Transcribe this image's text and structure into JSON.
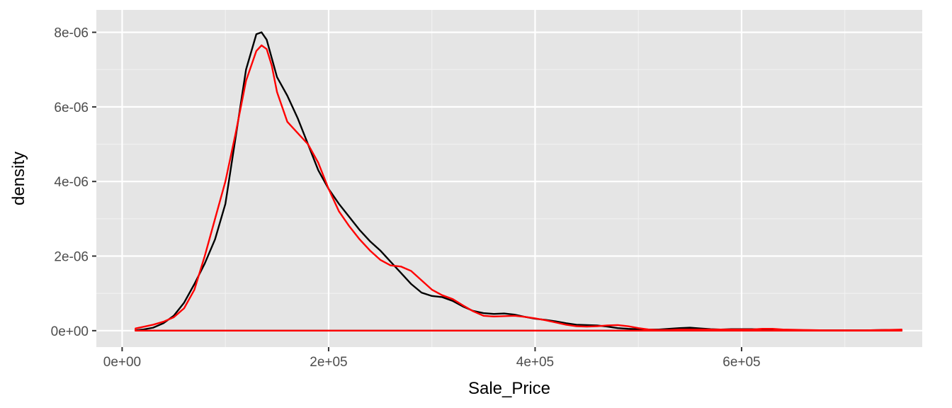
{
  "chart_data": {
    "type": "line",
    "xlabel": "Sale_Price",
    "ylabel": "density",
    "xlim": [
      -25000,
      775000
    ],
    "ylim": [
      -4.4e-07,
      8.6e-06
    ],
    "x_ticks": [
      {
        "value": 0,
        "label": "0e+00"
      },
      {
        "value": 200000,
        "label": "2e+05"
      },
      {
        "value": 400000,
        "label": "4e+05"
      },
      {
        "value": 600000,
        "label": "6e+05"
      }
    ],
    "x_minor": [
      100000,
      300000,
      500000,
      700000
    ],
    "y_ticks": [
      {
        "value": 0,
        "label": "0e+00"
      },
      {
        "value": 2e-06,
        "label": "2e-06"
      },
      {
        "value": 4e-06,
        "label": "4e-06"
      },
      {
        "value": 6e-06,
        "label": "6e-06"
      },
      {
        "value": 8e-06,
        "label": "8e-06"
      }
    ],
    "y_minor": [
      1e-06,
      3e-06,
      5e-06,
      7e-06
    ],
    "grid": true,
    "legend": "none",
    "series": [
      {
        "color": "#000000",
        "x": [
          13000,
          20000,
          30000,
          40000,
          50000,
          60000,
          70000,
          80000,
          90000,
          100000,
          110000,
          120000,
          130000,
          135000,
          140000,
          145000,
          150000,
          160000,
          170000,
          180000,
          190000,
          200000,
          210000,
          220000,
          230000,
          240000,
          250000,
          260000,
          270000,
          280000,
          290000,
          300000,
          310000,
          320000,
          330000,
          340000,
          350000,
          360000,
          370000,
          380000,
          390000,
          400000,
          410000,
          420000,
          430000,
          440000,
          450000,
          460000,
          470000,
          480000,
          490000,
          500000,
          510000,
          520000,
          530000,
          540000,
          550000,
          560000,
          570000,
          580000,
          590000,
          600000,
          610000,
          620000,
          640000,
          660000,
          680000,
          700000,
          720000,
          740000,
          755000
        ],
        "y": [
          1e-08,
          3e-08,
          8e-08,
          2e-07,
          4e-07,
          7.5e-07,
          1.25e-06,
          1.8e-06,
          2.45e-06,
          3.4e-06,
          5.2e-06,
          7e-06,
          7.95e-06,
          8e-06,
          7.8e-06,
          7.3e-06,
          6.8e-06,
          6.3e-06,
          5.7e-06,
          5e-06,
          4.3e-06,
          3.8e-06,
          3.4e-06,
          3.05e-06,
          2.7e-06,
          2.4e-06,
          2.15e-06,
          1.85e-06,
          1.55e-06,
          1.25e-06,
          1.02e-06,
          9.3e-07,
          9e-07,
          8e-07,
          6.5e-07,
          5.3e-07,
          4.7e-07,
          4.5e-07,
          4.6e-07,
          4.3e-07,
          3.7e-07,
          3.2e-07,
          2.9e-07,
          2.5e-07,
          2e-07,
          1.6e-07,
          1.5e-07,
          1.4e-07,
          1.1e-07,
          7e-08,
          5e-08,
          4e-08,
          3e-08,
          3e-08,
          5e-08,
          7e-08,
          8e-08,
          6e-08,
          4e-08,
          3e-08,
          4e-08,
          4e-08,
          4e-08,
          3e-08,
          1e-08,
          1e-08,
          1e-08,
          1e-08,
          1e-08,
          2e-08,
          1e-08
        ]
      },
      {
        "color": "#ff0000",
        "x": [
          13000,
          20000,
          30000,
          40000,
          50000,
          60000,
          70000,
          80000,
          90000,
          100000,
          110000,
          120000,
          130000,
          135000,
          140000,
          145000,
          150000,
          160000,
          170000,
          180000,
          190000,
          200000,
          210000,
          220000,
          230000,
          240000,
          250000,
          260000,
          270000,
          280000,
          290000,
          300000,
          310000,
          320000,
          330000,
          340000,
          350000,
          360000,
          370000,
          380000,
          390000,
          400000,
          410000,
          420000,
          430000,
          440000,
          450000,
          460000,
          470000,
          480000,
          490000,
          500000,
          510000,
          520000,
          530000,
          540000,
          550000,
          560000,
          570000,
          580000,
          590000,
          600000,
          610000,
          620000,
          630000,
          640000,
          660000,
          680000,
          700000,
          720000,
          740000,
          755000
        ],
        "y": [
          6e-08,
          1e-07,
          1.6e-07,
          2.4e-07,
          3.6e-07,
          6e-07,
          1.1e-06,
          2e-06,
          3e-06,
          4e-06,
          5.3e-06,
          6.7e-06,
          7.5e-06,
          7.65e-06,
          7.55e-06,
          7.1e-06,
          6.4e-06,
          5.6e-06,
          5.3e-06,
          5e-06,
          4.5e-06,
          3.8e-06,
          3.2e-06,
          2.8e-06,
          2.45e-06,
          2.15e-06,
          1.9e-06,
          1.75e-06,
          1.72e-06,
          1.6e-06,
          1.35e-06,
          1.1e-06,
          9.5e-07,
          8.5e-07,
          6.8e-07,
          5.2e-07,
          4e-07,
          3.8e-07,
          3.9e-07,
          4e-07,
          3.7e-07,
          3.3e-07,
          2.8e-07,
          2.2e-07,
          1.6e-07,
          1.2e-07,
          1.1e-07,
          1.2e-07,
          1.4e-07,
          1.5e-07,
          1.2e-07,
          7e-08,
          3e-08,
          2e-08,
          2e-08,
          3e-08,
          3e-08,
          3e-08,
          3e-08,
          3e-08,
          3e-08,
          3e-08,
          3e-08,
          5e-08,
          5e-08,
          3e-08,
          2e-08,
          1e-08,
          1e-08,
          1e-08,
          2e-08,
          3e-08
        ]
      }
    ]
  }
}
